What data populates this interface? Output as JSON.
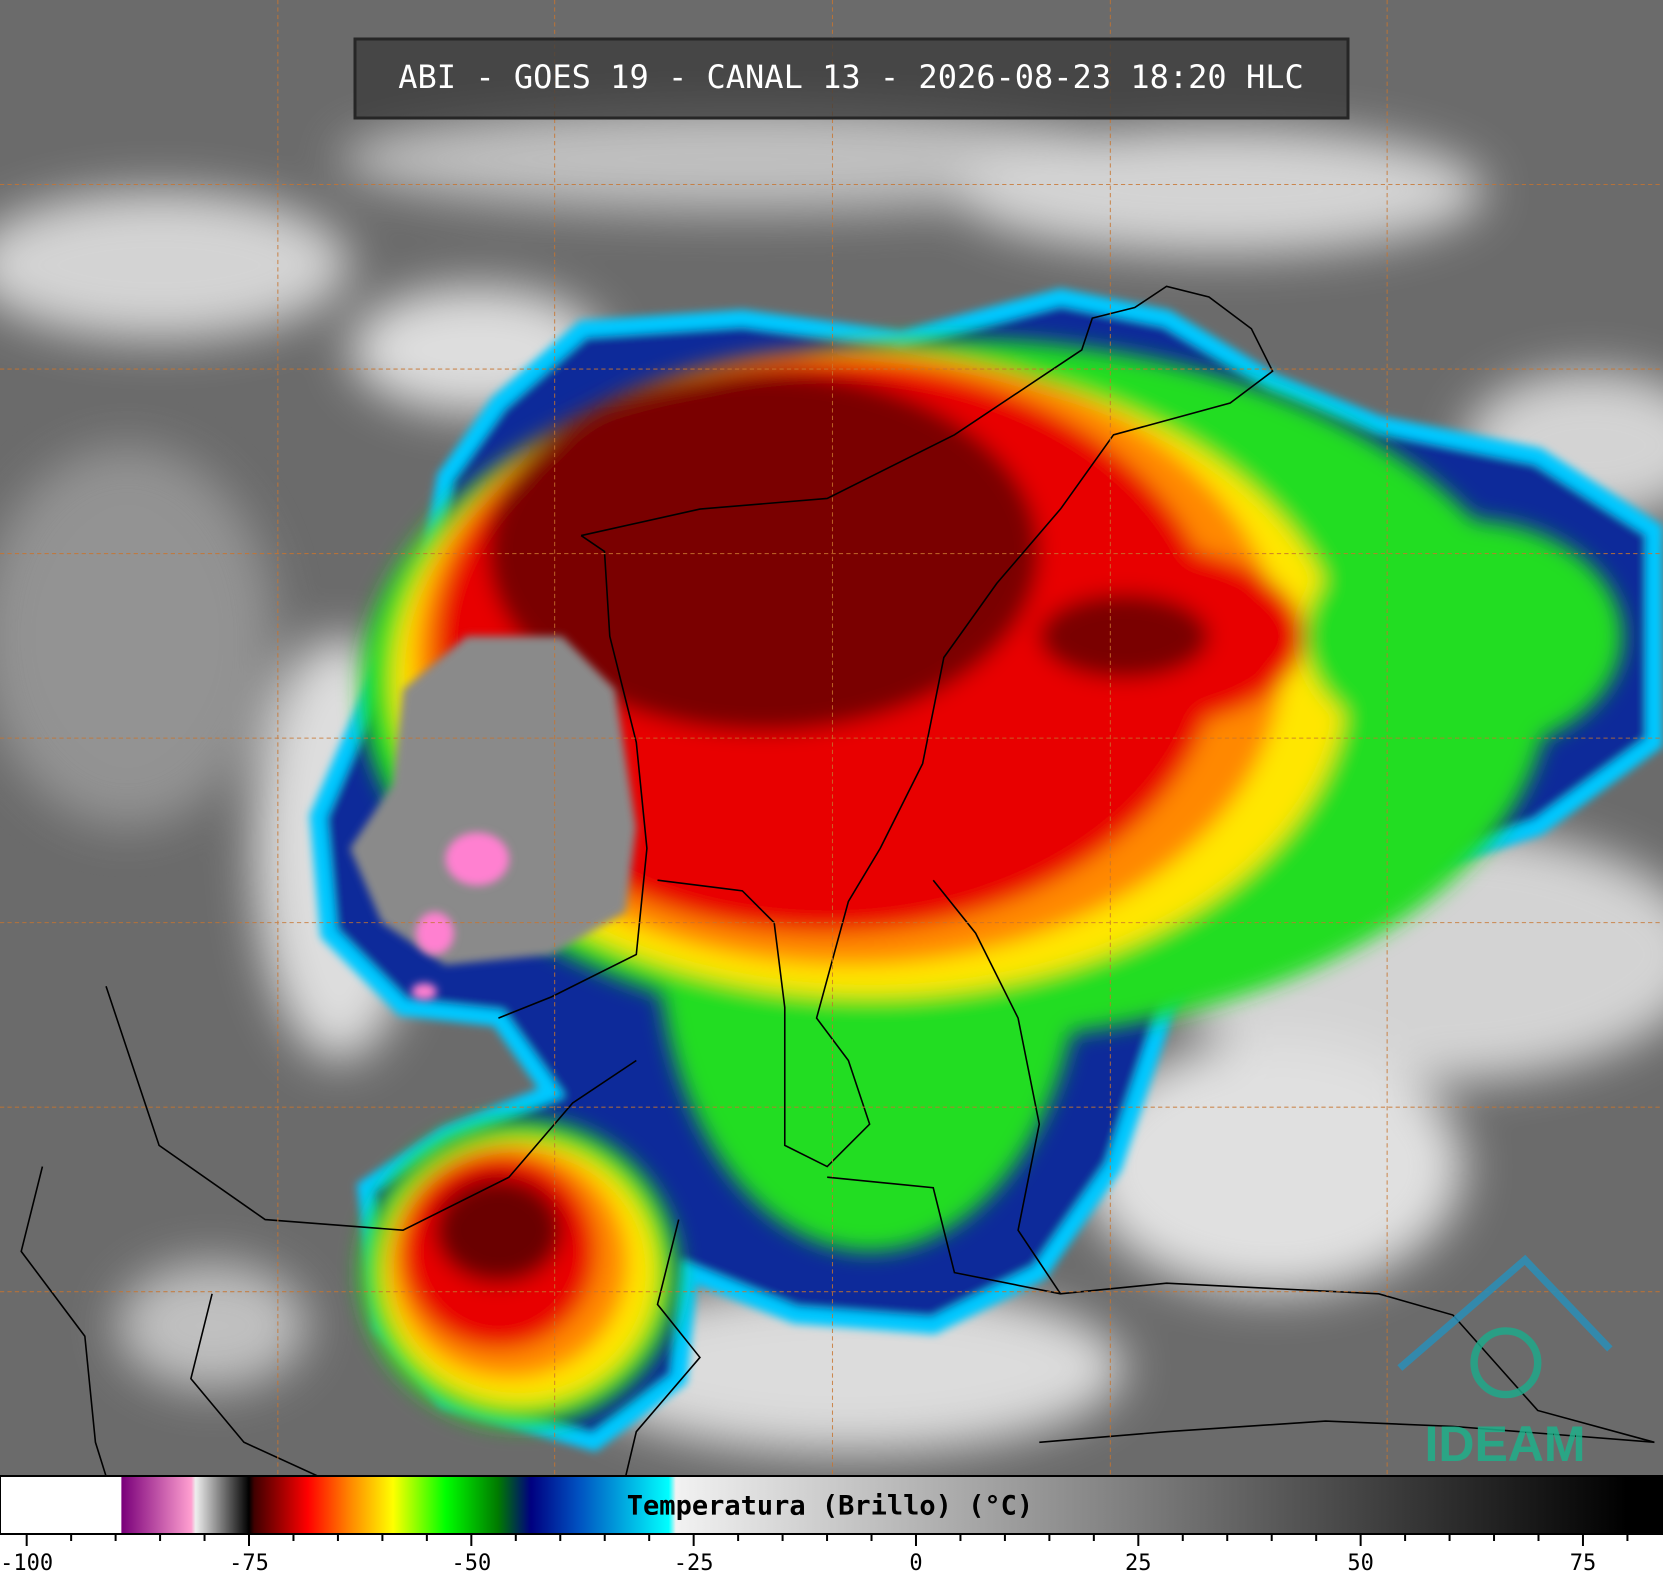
{
  "header": {
    "title": "ABI - GOES 19 - CANAL 13 - 2026-08-23 18:20 HLC"
  },
  "logo": {
    "text": "IDEAM"
  },
  "colorbar": {
    "label": "Temperatura (Brillo) (°C)",
    "xlim": [
      -103,
      84
    ],
    "xticks": [
      -100,
      -75,
      -50,
      -25,
      0,
      25,
      50,
      75
    ],
    "minor_xticks": [
      -95,
      -90,
      -85,
      -80,
      -70,
      -65,
      -60,
      -55,
      -45,
      -40,
      -35,
      -30,
      -20,
      -15,
      -10,
      -5,
      5,
      10,
      15,
      20,
      30,
      35,
      40,
      45,
      55,
      60,
      65,
      70,
      80
    ],
    "colormap": [
      {
        "value": -103,
        "color": "#ffffff"
      },
      {
        "value": -89.4,
        "color": "#ffffff"
      },
      {
        "value": -89.3,
        "color": "#7a007a"
      },
      {
        "value": -81.5,
        "color": "#ff9fd0"
      },
      {
        "value": -81,
        "color": "#eeeeee"
      },
      {
        "value": -75,
        "color": "#000000"
      },
      {
        "value": -74.4,
        "color": "#400000"
      },
      {
        "value": -68.4,
        "color": "#ff0000"
      },
      {
        "value": -63.6,
        "color": "#ff8800"
      },
      {
        "value": -58.8,
        "color": "#ffff00"
      },
      {
        "value": -52.9,
        "color": "#00ff00"
      },
      {
        "value": -47,
        "color": "#007a00"
      },
      {
        "value": -43.3,
        "color": "#000080"
      },
      {
        "value": -38,
        "color": "#0050c0"
      },
      {
        "value": -27.8,
        "color": "#00ffff"
      },
      {
        "value": -27,
        "color": "#f2f2f2"
      },
      {
        "value": 80,
        "color": "#000000"
      },
      {
        "value": 84,
        "color": "#000000"
      }
    ]
  }
}
